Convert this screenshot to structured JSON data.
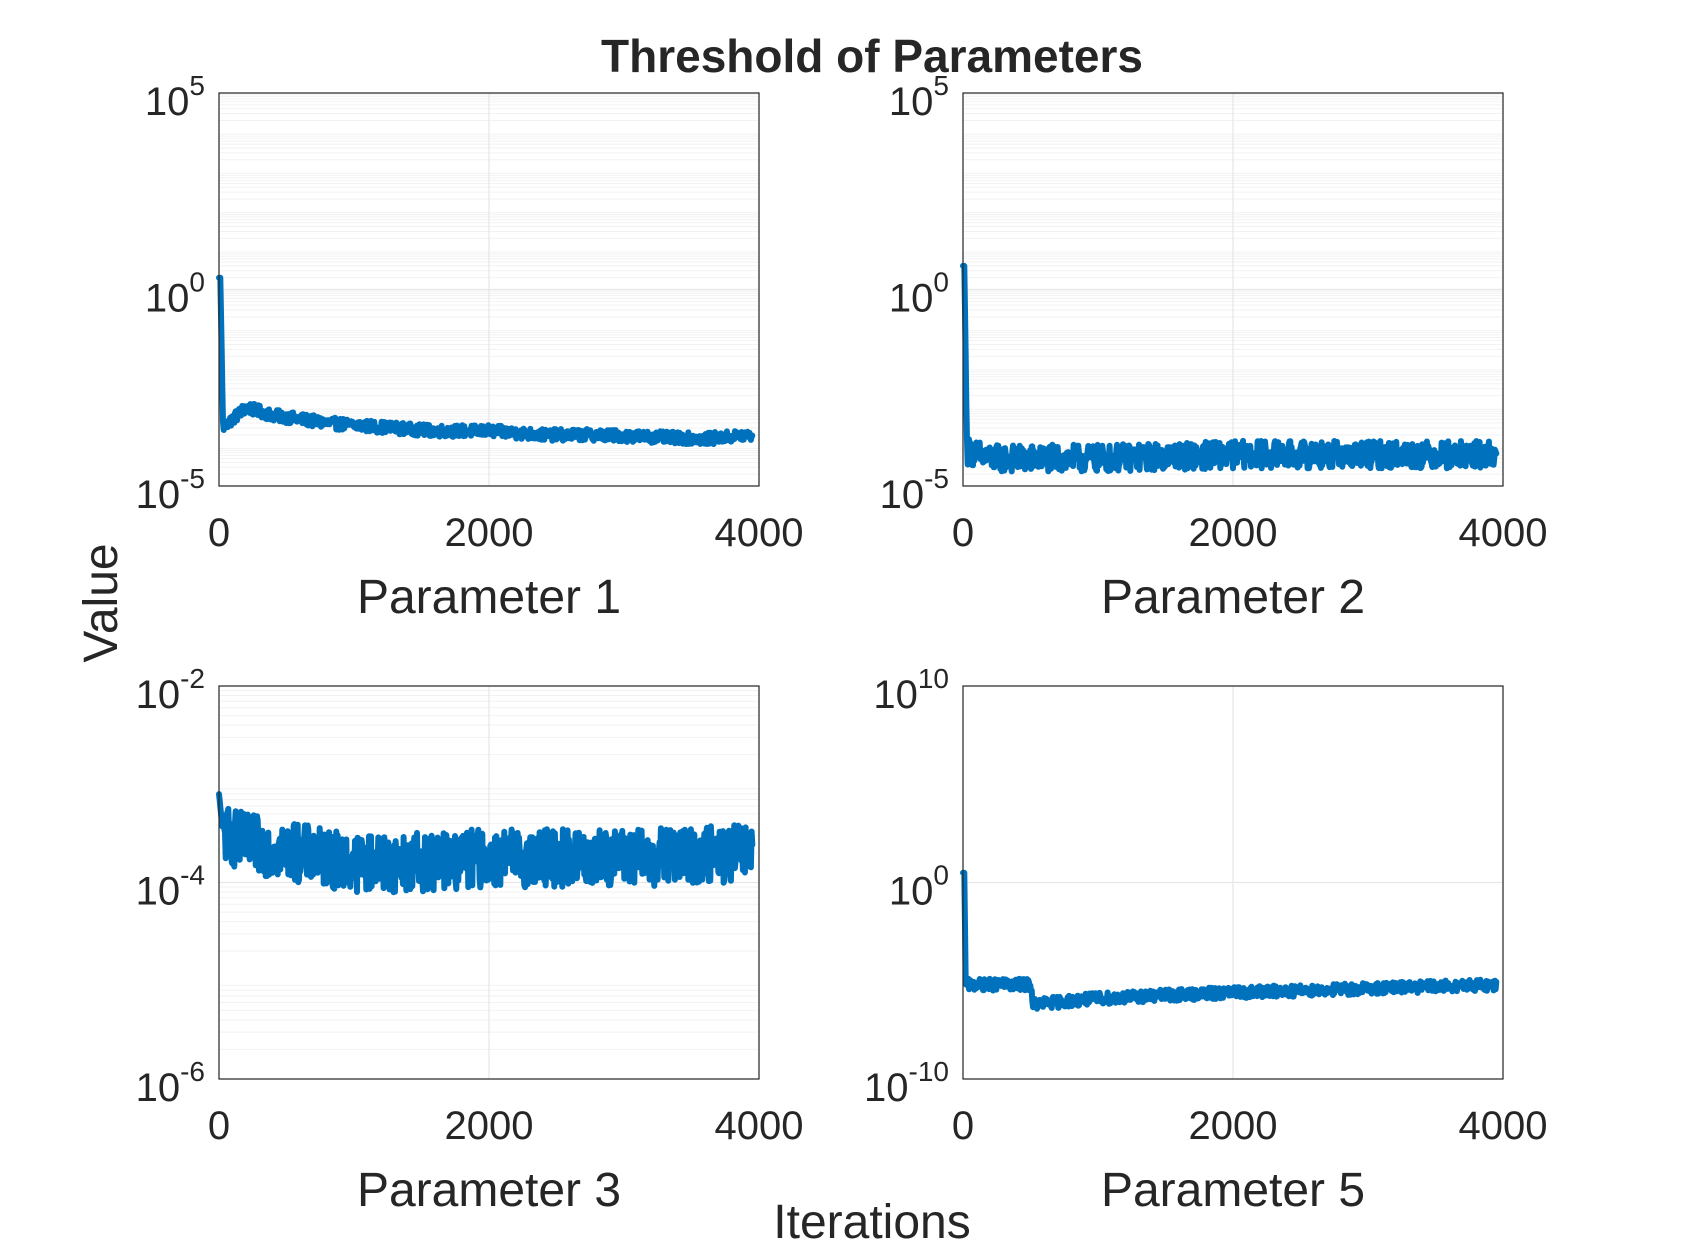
{
  "chart_data": {
    "title": "Threshold of Parameters",
    "xlabel": "Iterations",
    "ylabel": "Value",
    "colors": {
      "line": "#0072BD",
      "grid": "#e6e6e6",
      "axes": "#262626",
      "background": "#ffffff"
    },
    "subplots": [
      {
        "type": "line",
        "xlabel": "Parameter 1",
        "xlim": [
          0,
          4000
        ],
        "xticks": [
          "0",
          "2000",
          "4000"
        ],
        "yscale": "log",
        "ylim_exp": [
          -5,
          5
        ],
        "yticks": [
          {
            "base": "10",
            "exp": "-5"
          },
          {
            "base": "10",
            "exp": "0"
          },
          {
            "base": "10",
            "exp": "5"
          }
        ],
        "series": [
          {
            "name": "Parameter 1",
            "x": [
              0,
              10,
              30,
              100,
              200,
              400,
              800,
              1200,
              1600,
              2000,
              2400,
              2800,
              3200,
              3600,
              3950
            ],
            "log10_y": [
              0.3,
              0.3,
              -3.5,
              -3.3,
              -3.0,
              -3.2,
              -3.4,
              -3.5,
              -3.6,
              -3.6,
              -3.7,
              -3.7,
              -3.75,
              -3.8,
              -3.7
            ],
            "noise_log10": 0.15
          }
        ]
      },
      {
        "type": "line",
        "xlabel": "Parameter 2",
        "xlim": [
          0,
          4000
        ],
        "xticks": [
          "0",
          "2000",
          "4000"
        ],
        "yscale": "log",
        "ylim_exp": [
          -5,
          5
        ],
        "yticks": [
          {
            "base": "10",
            "exp": "-5"
          },
          {
            "base": "10",
            "exp": "0"
          },
          {
            "base": "10",
            "exp": "5"
          }
        ],
        "series": [
          {
            "name": "Parameter 2",
            "x": [
              0,
              10,
              30,
              200,
              1000,
              2000,
              3000,
              3950
            ],
            "log10_y": [
              0.6,
              0.6,
              -4.1,
              -4.3,
              -4.3,
              -4.2,
              -4.2,
              -4.2
            ],
            "noise_log10": 0.35
          }
        ]
      },
      {
        "type": "line",
        "xlabel": "Parameter 3",
        "xlim": [
          0,
          4000
        ],
        "xticks": [
          "0",
          "2000",
          "4000"
        ],
        "yscale": "log",
        "ylim_exp": [
          -6,
          -2
        ],
        "yticks": [
          {
            "base": "10",
            "exp": "-6"
          },
          {
            "base": "10",
            "exp": "-4"
          },
          {
            "base": "10",
            "exp": "-2"
          }
        ],
        "series": [
          {
            "name": "Parameter 3",
            "x": [
              0,
              30,
              200,
              600,
              1000,
              1400,
              2000,
              2600,
              3200,
              3950
            ],
            "log10_y": [
              -3.1,
              -3.5,
              -3.6,
              -3.7,
              -3.8,
              -3.8,
              -3.75,
              -3.75,
              -3.75,
              -3.7
            ],
            "noise_log10": 0.3
          }
        ]
      },
      {
        "type": "line",
        "xlabel": "Parameter 5",
        "xlim": [
          0,
          4000
        ],
        "xticks": [
          "0",
          "2000",
          "4000"
        ],
        "yscale": "log",
        "ylim_exp": [
          -10,
          10
        ],
        "yticks": [
          {
            "base": "10",
            "exp": "-10"
          },
          {
            "base": "10",
            "exp": "0"
          },
          {
            "base": "10",
            "exp": "10"
          }
        ],
        "series": [
          {
            "name": "Parameter 5",
            "x": [
              0,
              10,
              20,
              500,
              520,
              1000,
              2000,
              3000,
              3950
            ],
            "log10_y": [
              0.5,
              0.5,
              -5.2,
              -5.2,
              -6.2,
              -5.9,
              -5.6,
              -5.4,
              -5.2
            ],
            "noise_log10": 0.3
          }
        ]
      }
    ]
  }
}
